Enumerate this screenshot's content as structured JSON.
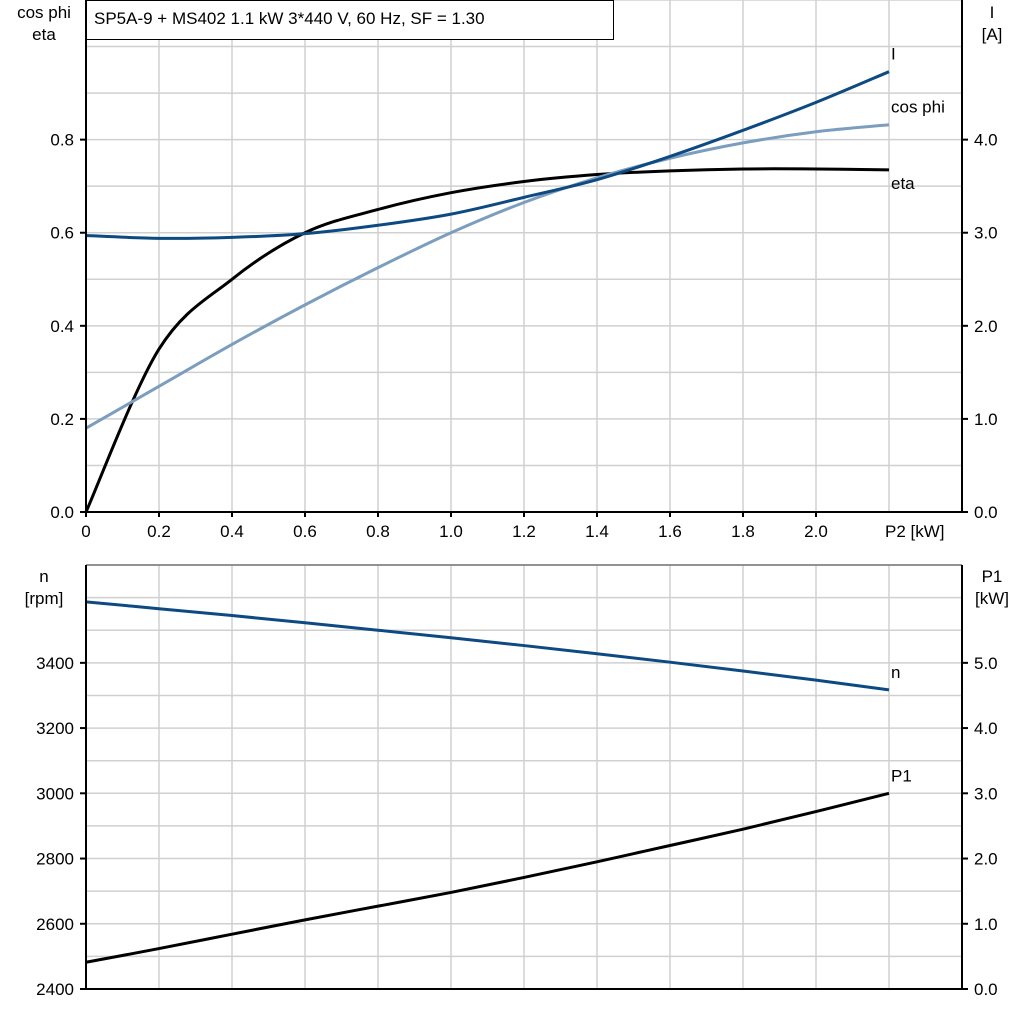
{
  "title": "SP5A-9 + MS402   1.1 kW   3*440 V, 60 Hz, SF = 1.30",
  "chart_data": [
    {
      "type": "line",
      "xlabel": "P2 [kW]",
      "ylabel_left": [
        "cos phi",
        "eta"
      ],
      "ylabel_right": [
        "I",
        "[A]"
      ],
      "xlim": [
        0,
        2.4
      ],
      "ylim_left": [
        0,
        1.1
      ],
      "ylim_right": [
        0,
        5.5
      ],
      "x_ticks": [
        "0",
        "0.2",
        "0.4",
        "0.6",
        "0.8",
        "1.0",
        "1.2",
        "1.4",
        "1.6",
        "1.8",
        "2.0"
      ],
      "y_ticks_left": [
        "0.0",
        "0.2",
        "0.4",
        "0.6",
        "0.8"
      ],
      "y_ticks_right": [
        "0.0",
        "1.0",
        "2.0",
        "3.0",
        "4.0"
      ],
      "grid": true,
      "x": [
        0,
        0.2,
        0.4,
        0.6,
        0.8,
        1.0,
        1.2,
        1.4,
        1.6,
        1.8,
        2.0,
        2.2
      ],
      "series": [
        {
          "name": "eta",
          "axis": "left",
          "color": "#000000",
          "values": [
            0.0,
            0.35,
            0.5,
            0.6,
            0.65,
            0.686,
            0.71,
            0.725,
            0.733,
            0.737,
            0.737,
            0.735
          ]
        },
        {
          "name": "cos phi",
          "axis": "left",
          "color": "#7b9dbe",
          "values": [
            0.18,
            0.27,
            0.36,
            0.445,
            0.525,
            0.6,
            0.665,
            0.718,
            0.76,
            0.793,
            0.817,
            0.832
          ]
        },
        {
          "name": "I",
          "axis": "right",
          "color": "#0d4a82",
          "values": [
            2.97,
            2.94,
            2.95,
            2.99,
            3.08,
            3.2,
            3.38,
            3.57,
            3.82,
            4.1,
            4.4,
            4.73
          ]
        }
      ]
    },
    {
      "type": "line",
      "ylabel_left": [
        "n",
        "[rpm]"
      ],
      "ylabel_right": [
        "P1",
        "[kW]"
      ],
      "xlim": [
        0,
        2.4
      ],
      "ylim_left": [
        2400,
        3700
      ],
      "ylim_right": [
        0,
        6.5
      ],
      "y_ticks_left": [
        "2400",
        "2600",
        "2800",
        "3000",
        "3200",
        "3400"
      ],
      "y_ticks_right": [
        "0.0",
        "1.0",
        "2.0",
        "3.0",
        "4.0",
        "5.0"
      ],
      "grid": true,
      "x": [
        0,
        0.2,
        0.4,
        0.6,
        0.8,
        1.0,
        1.2,
        1.4,
        1.6,
        1.8,
        2.0,
        2.2
      ],
      "series": [
        {
          "name": "n",
          "axis": "left",
          "color": "#0d4a82",
          "values": [
            3587,
            3566,
            3545,
            3523,
            3500,
            3477,
            3453,
            3428,
            3402,
            3375,
            3347,
            3317
          ]
        },
        {
          "name": "P1",
          "axis": "right",
          "color": "#000000",
          "values": [
            0.41,
            0.62,
            0.84,
            1.06,
            1.27,
            1.48,
            1.71,
            1.95,
            2.2,
            2.45,
            2.72,
            3.0
          ]
        }
      ]
    }
  ]
}
